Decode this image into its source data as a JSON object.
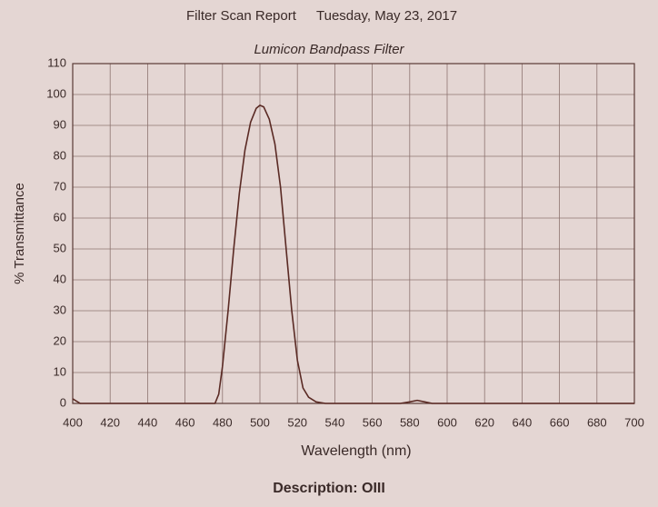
{
  "chart_data": {
    "type": "line",
    "report_title": "Filter Scan Report",
    "report_date": "Tuesday, May 23, 2017",
    "title": "Lumicon Bandpass Filter",
    "x_label": "Wavelength (nm)",
    "y_label": "% Transmittance",
    "description": "Description: OIII",
    "x": [
      400,
      404,
      476,
      478,
      480,
      483,
      486,
      489,
      492,
      495,
      498,
      500,
      502,
      505,
      508,
      511,
      514,
      517,
      520,
      523,
      526,
      530,
      535,
      575,
      580,
      584,
      588,
      592,
      700
    ],
    "values": [
      1.5,
      0,
      0,
      3,
      12,
      30,
      50,
      68,
      82,
      91,
      95.5,
      96.5,
      96,
      92,
      84,
      70,
      50,
      30,
      14,
      5,
      2,
      0.5,
      0,
      0,
      0.5,
      1,
      0.5,
      0,
      0
    ],
    "color": "#5a2a24",
    "xlim": [
      400,
      700
    ],
    "xticks": [
      400,
      420,
      440,
      460,
      480,
      500,
      520,
      540,
      560,
      580,
      600,
      620,
      640,
      660,
      680,
      700
    ],
    "ylim": [
      0,
      110
    ],
    "yticks": [
      0,
      10,
      20,
      30,
      40,
      50,
      60,
      70,
      80,
      90,
      100,
      110
    ],
    "grid": true
  }
}
